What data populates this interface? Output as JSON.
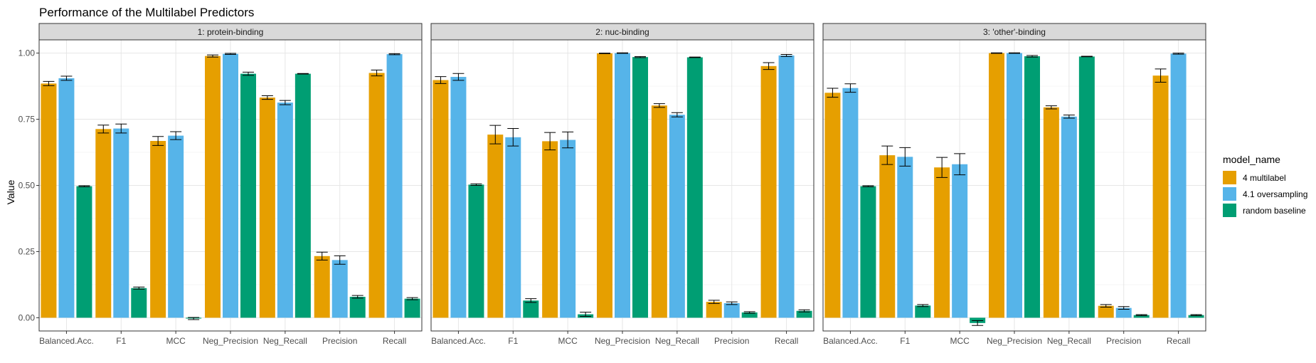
{
  "chart_data": {
    "type": "bar",
    "title": "Performance of the Multilabel Predictors",
    "xlabel": "",
    "ylabel": "Value",
    "ylim": [
      -0.05,
      1.05
    ],
    "yticks": [
      "0.00",
      "0.25",
      "0.50",
      "0.75",
      "1.00"
    ],
    "ytick_values": [
      0,
      0.25,
      0.5,
      0.75,
      1.0
    ],
    "grid": true,
    "legend_position": "right",
    "legend_title": "model_name",
    "categories": [
      "Balanced.Acc.",
      "F1",
      "MCC",
      "Neg_Precision",
      "Neg_Recall",
      "Precision",
      "Recall"
    ],
    "series_colors": [
      "#E69F00",
      "#56B4E9",
      "#009E73"
    ],
    "legend": [
      "4 multilabel",
      "4.1 oversampling",
      "random baseline"
    ],
    "panels": [
      {
        "label": "1: protein-binding",
        "series": [
          {
            "name": "4 multilabel",
            "values": [
              0.885,
              0.713,
              0.668,
              0.989,
              0.832,
              0.233,
              0.925
            ],
            "err": [
              0.008,
              0.015,
              0.017,
              0.004,
              0.007,
              0.015,
              0.011
            ]
          },
          {
            "name": "4.1 oversampling",
            "values": [
              0.905,
              0.715,
              0.688,
              0.997,
              0.813,
              0.218,
              0.996
            ],
            "err": [
              0.008,
              0.017,
              0.015,
              0.002,
              0.008,
              0.016,
              0.002
            ]
          },
          {
            "name": "random baseline",
            "values": [
              0.497,
              0.112,
              -0.003,
              0.922,
              0.922,
              0.079,
              0.072
            ],
            "err": [
              0.002,
              0.004,
              0.004,
              0.006,
              0.001,
              0.005,
              0.004
            ]
          }
        ]
      },
      {
        "label": "2: nuc-binding",
        "series": [
          {
            "name": "4 multilabel",
            "values": [
              0.898,
              0.692,
              0.667,
              0.999,
              0.802,
              0.06,
              0.951
            ],
            "err": [
              0.013,
              0.035,
              0.033,
              0.001,
              0.007,
              0.006,
              0.013
            ]
          },
          {
            "name": "4.1 oversampling",
            "values": [
              0.91,
              0.682,
              0.672,
              1.0,
              0.767,
              0.055,
              0.991
            ],
            "err": [
              0.013,
              0.033,
              0.03,
              0.001,
              0.008,
              0.005,
              0.004
            ]
          },
          {
            "name": "random baseline",
            "values": [
              0.503,
              0.065,
              0.013,
              0.985,
              0.984,
              0.02,
              0.026
            ],
            "err": [
              0.003,
              0.007,
              0.008,
              0.002,
              0.001,
              0.003,
              0.004
            ]
          }
        ]
      },
      {
        "label": "3: 'other'-binding",
        "series": [
          {
            "name": "4 multilabel",
            "values": [
              0.85,
              0.614,
              0.568,
              1.0,
              0.795,
              0.045,
              0.915
            ],
            "err": [
              0.017,
              0.035,
              0.038,
              0.001,
              0.006,
              0.005,
              0.025
            ]
          },
          {
            "name": "4.1 oversampling",
            "values": [
              0.868,
              0.608,
              0.58,
              1.0,
              0.76,
              0.037,
              0.998
            ],
            "err": [
              0.016,
              0.035,
              0.04,
              0.001,
              0.006,
              0.005,
              0.002
            ]
          },
          {
            "name": "random baseline",
            "values": [
              0.497,
              0.046,
              -0.02,
              0.988,
              0.987,
              0.01,
              0.01
            ],
            "err": [
              0.002,
              0.004,
              0.009,
              0.003,
              0.001,
              0.002,
              0.002
            ]
          }
        ]
      }
    ]
  }
}
